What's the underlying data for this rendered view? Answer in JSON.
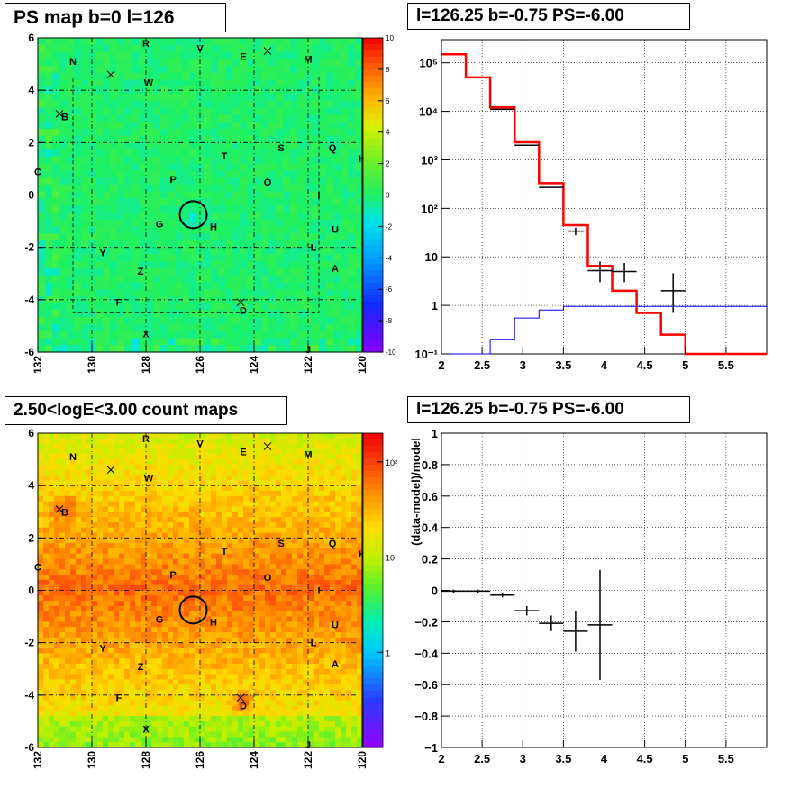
{
  "panels": {
    "map_top_title": "PS map b=0 l=126",
    "spec_top_title": "l=126.25 b=-0.75 PS=-6.00",
    "map_bottom_title": "2.50<logE<3.00 count maps",
    "spec_bottom_title": "l=126.25 b=-0.75 PS=-6.00"
  },
  "colors": {
    "model": "#ff0000",
    "data": "#000000",
    "background": "#0000ff",
    "ps_map_base": "#22ee55",
    "count_map_base": "#ee4411"
  },
  "map_labels": [
    {
      "t": "R",
      "l": 128.0,
      "b": 5.8
    },
    {
      "t": "V",
      "l": 126.0,
      "b": 5.6
    },
    {
      "t": "E",
      "l": 124.4,
      "b": 5.3
    },
    {
      "t": "M",
      "l": 122.0,
      "b": 5.2
    },
    {
      "t": "N",
      "l": 130.7,
      "b": 5.1
    },
    {
      "t": "W",
      "l": 127.9,
      "b": 4.3
    },
    {
      "t": "B",
      "l": 131.0,
      "b": 3.0
    },
    {
      "t": "S",
      "l": 123.0,
      "b": 1.8
    },
    {
      "t": "Q",
      "l": 121.1,
      "b": 1.8
    },
    {
      "t": "K",
      "l": 120.0,
      "b": 1.4
    },
    {
      "t": "T",
      "l": 125.1,
      "b": 1.5
    },
    {
      "t": "C",
      "l": 132.0,
      "b": 0.9
    },
    {
      "t": "P",
      "l": 127.0,
      "b": 0.6
    },
    {
      "t": "O",
      "l": 123.5,
      "b": 0.5
    },
    {
      "t": "I",
      "l": 121.6,
      "b": 0.0
    },
    {
      "t": "G",
      "l": 127.5,
      "b": -1.1
    },
    {
      "t": "H",
      "l": 125.5,
      "b": -1.2
    },
    {
      "t": "U",
      "l": 121.0,
      "b": -1.3
    },
    {
      "t": "Y",
      "l": 129.6,
      "b": -2.2
    },
    {
      "t": "L",
      "l": 121.8,
      "b": -2.0
    },
    {
      "t": "Z",
      "l": 128.2,
      "b": -2.9
    },
    {
      "t": "A",
      "l": 121.0,
      "b": -2.8
    },
    {
      "t": "F",
      "l": 129.0,
      "b": -4.1
    },
    {
      "t": "D",
      "l": 124.4,
      "b": -4.4
    },
    {
      "t": "X",
      "l": 128.0,
      "b": -5.3
    },
    {
      "t": "J",
      "l": 122.0,
      "b": -5.9
    }
  ],
  "map_crosses": [
    {
      "l": 131.2,
      "b": 3.1
    },
    {
      "l": 129.3,
      "b": 4.6
    },
    {
      "l": 123.5,
      "b": 5.5
    },
    {
      "l": 124.5,
      "b": -4.1
    }
  ],
  "map_axes": {
    "x_ticks": [
      "132",
      "130",
      "128",
      "126",
      "124",
      "122",
      "120"
    ],
    "y_ticks": [
      "6",
      "4",
      "2",
      "0",
      "-2",
      "-4",
      "-6"
    ],
    "ps_z_ticks": [
      "10",
      "8",
      "6",
      "4",
      "2",
      "0",
      "-2",
      "-4",
      "-6",
      "-8",
      "-10"
    ],
    "count_z_ticks": [
      "10²",
      "10",
      "1"
    ]
  },
  "chart_data": [
    {
      "type": "heatmap",
      "title": "PS map b=0 l=126",
      "xlim": [
        132,
        120
      ],
      "ylim": [
        -6,
        6
      ],
      "zlim": [
        -10,
        10
      ],
      "marked_source": {
        "l": 126.25,
        "b": -0.75
      },
      "note_level": 0
    },
    {
      "type": "line",
      "title": "l=126.25 b=-0.75 PS=-6.00",
      "xlim": [
        2,
        6
      ],
      "ylim": [
        0.1,
        300000
      ],
      "yscale": "log",
      "x_ticks": [
        "2",
        "2.5",
        "3",
        "3.5",
        "4",
        "4.5",
        "5",
        "5.5"
      ],
      "y_ticks": [
        "10⁵",
        "10⁴",
        "10³",
        "10²",
        "10",
        "1",
        "10⁻¹"
      ],
      "series": [
        {
          "role": "model",
          "edges": [
            2.0,
            2.3,
            2.6,
            2.9,
            3.2,
            3.5,
            3.8,
            4.1,
            4.4,
            4.7,
            5.0,
            6.0
          ],
          "values": [
            150000,
            50000,
            12000,
            2300,
            330,
            45,
            6.5,
            2.0,
            0.7,
            0.25,
            0.1
          ]
        },
        {
          "role": "background",
          "edges": [
            2.0,
            2.3,
            2.6,
            2.9,
            3.2,
            3.5,
            6.0
          ],
          "values": [
            0.1,
            0.1,
            0.2,
            0.55,
            0.8,
            0.95
          ]
        },
        {
          "role": "data",
          "points": [
            {
              "x": 2.75,
              "y": 11000,
              "xerr": 0.15
            },
            {
              "x": 3.05,
              "y": 2000,
              "xerr": 0.15
            },
            {
              "x": 3.35,
              "y": 270,
              "xerr": 0.15
            },
            {
              "x": 3.65,
              "y": 34,
              "xerr": 0.1,
              "ylo": 28,
              "yhi": 40
            },
            {
              "x": 3.95,
              "y": 5.2,
              "xerr": 0.15,
              "ylo": 3,
              "yhi": 8
            },
            {
              "x": 4.25,
              "y": 5.0,
              "xerr": 0.15,
              "ylo": 3,
              "yhi": 7.5
            },
            {
              "x": 4.85,
              "y": 2.0,
              "xerr": 0.15,
              "ylo": 0.7,
              "yhi": 4.6
            }
          ]
        }
      ]
    },
    {
      "type": "heatmap",
      "title": "2.50<logE<3.00 count maps",
      "xlim": [
        132,
        120
      ],
      "ylim": [
        -6,
        6
      ],
      "zscale": "log",
      "zlim": [
        0.1,
        200
      ],
      "marked_source": {
        "l": 126.25,
        "b": -0.75
      }
    },
    {
      "type": "scatter",
      "title": "l=126.25 b=-0.75 PS=-6.00",
      "ylabel": "(data-model)/model",
      "xlim": [
        2,
        6
      ],
      "ylim": [
        -1,
        1
      ],
      "x_ticks": [
        "2",
        "2.5",
        "3",
        "3.5",
        "4",
        "4.5",
        "5",
        "5.5"
      ],
      "y_ticks": [
        "1",
        "0.8",
        "0.6",
        "0.4",
        "0.2",
        "0",
        "−0.2",
        "−0.4",
        "−0.6",
        "−0.8",
        "−1"
      ],
      "points": [
        {
          "x": 2.15,
          "y": -0.005,
          "xerr": 0.15,
          "yerr": 0.01
        },
        {
          "x": 2.45,
          "y": -0.005,
          "xerr": 0.15,
          "yerr": 0.01
        },
        {
          "x": 2.75,
          "y": -0.03,
          "xerr": 0.15,
          "yerr": 0.015
        },
        {
          "x": 3.05,
          "y": -0.13,
          "xerr": 0.15,
          "yerr": 0.03
        },
        {
          "x": 3.35,
          "y": -0.21,
          "xerr": 0.15,
          "yerr": 0.05
        },
        {
          "x": 3.65,
          "y": -0.26,
          "xerr": 0.15,
          "yerr": 0.13
        },
        {
          "x": 3.95,
          "y": -0.22,
          "xerr": 0.15,
          "yerr": 0.35
        }
      ]
    }
  ]
}
